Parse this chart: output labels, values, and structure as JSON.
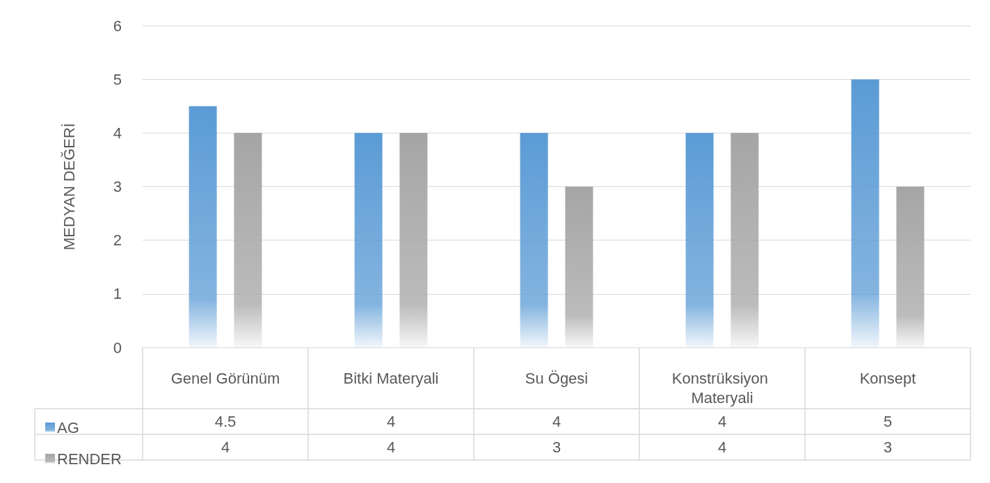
{
  "chart_data": {
    "type": "bar",
    "ylabel": "MEDYAN DEĞERİ",
    "categories": [
      "Genel Görünüm",
      "Bitki Materyali",
      "Su Ögesi",
      "Konstrüksiyon Materyali",
      "Konsept"
    ],
    "series": [
      {
        "name": "AG",
        "color": "#5b9bd5",
        "values": [
          4.5,
          4,
          4,
          4,
          5
        ]
      },
      {
        "name": "RENDER",
        "color": "#a5a5a5",
        "values": [
          4,
          4,
          3,
          4,
          3
        ]
      }
    ],
    "ylim": [
      0,
      6
    ],
    "yticks": [
      0,
      1,
      2,
      3,
      4,
      5,
      6
    ],
    "grid": "y",
    "legend": "bottom left",
    "data_labels": true
  }
}
